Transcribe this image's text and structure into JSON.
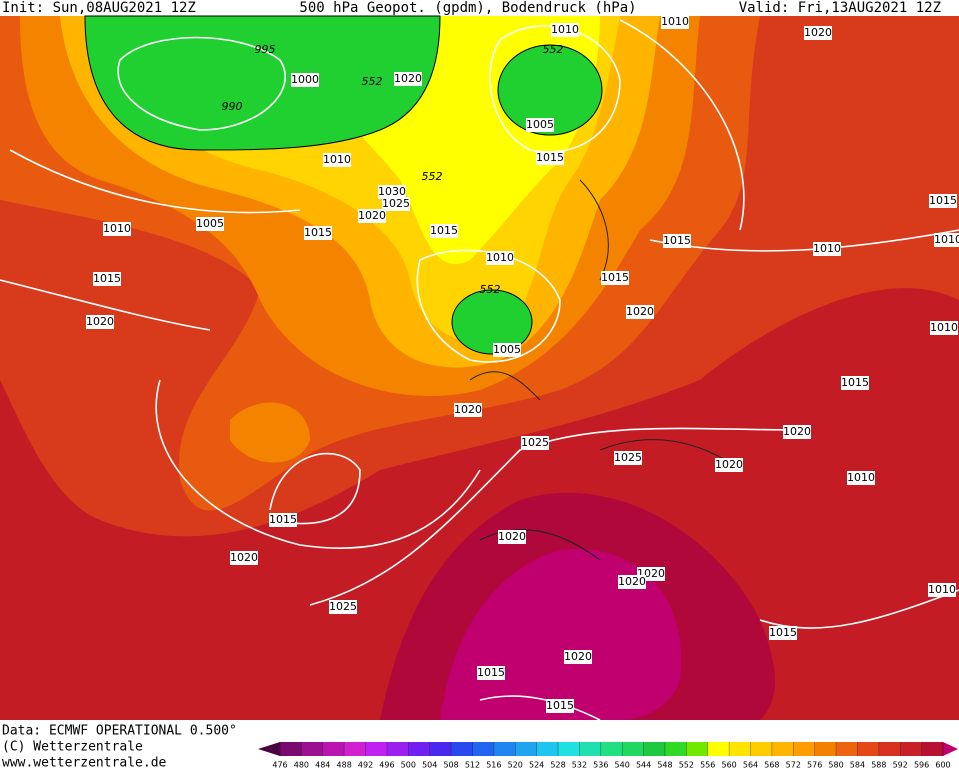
{
  "header": {
    "init": "Init: Sun,08AUG2021 12Z",
    "title": "500 hPa Geopot. (gpdm), Bodendruck (hPa)",
    "valid": "Valid: Fri,13AUG2021 12Z"
  },
  "footer": {
    "data": "Data: ECMWF OPERATIONAL 0.500°",
    "copyright": "(C) Wetterzentrale",
    "url": "www.wetterzentrale.de"
  },
  "contour_labels": [
    995,
    1000,
    990,
    1020,
    552,
    1010,
    552,
    1010,
    1020,
    1005,
    1015,
    1010,
    552,
    1030,
    1025,
    1020,
    1005,
    1015,
    1015,
    1010,
    1015,
    1010,
    1015,
    1010,
    1010,
    1015,
    552,
    1015,
    1020,
    1020,
    1005,
    1010,
    1015,
    1020,
    1020,
    1025,
    1025,
    1020,
    1010,
    1015,
    1020,
    1020,
    1020,
    1020,
    1010,
    1025,
    1015,
    1020,
    1015,
    1015
  ],
  "colorbar": {
    "levels": [
      476,
      480,
      484,
      488,
      492,
      496,
      500,
      504,
      508,
      512,
      516,
      520,
      524,
      528,
      532,
      536,
      540,
      544,
      548,
      552,
      556,
      560,
      564,
      568,
      572,
      576,
      580,
      584,
      588,
      592,
      596,
      600
    ],
    "colors": [
      "#4a0040",
      "#7a0a70",
      "#9a1090",
      "#b814b0",
      "#d020d0",
      "#c020f0",
      "#9a20f0",
      "#7020f0",
      "#4a28f0",
      "#2848f0",
      "#2064f0",
      "#2084f0",
      "#20a4f0",
      "#20c4f0",
      "#20e0e0",
      "#20e0b0",
      "#20e080",
      "#20d860",
      "#20c840",
      "#30d828",
      "#70e800",
      "#ffff00",
      "#ffe400",
      "#ffcc00",
      "#ffb400",
      "#ff9c00",
      "#f48000",
      "#ec6410",
      "#e44818",
      "#d83020",
      "#c82028",
      "#b81030",
      "#c0006e"
    ]
  }
}
